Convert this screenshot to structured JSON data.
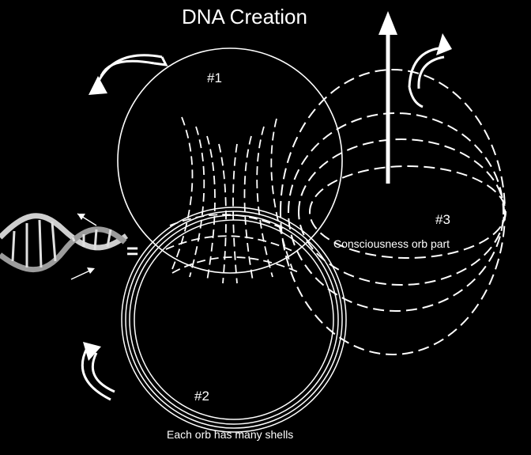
{
  "title": "DNA Creation",
  "labels": {
    "orb1": "#1",
    "orb2": "#2",
    "orb3": "#3",
    "consciousness": "Consciousness orb part",
    "shells": "Each orb has many shells",
    "equals": "="
  },
  "colors": {
    "background": "#000000",
    "stroke": "#ffffff",
    "dna": "#c9c9c9"
  },
  "icons": [
    "rotate-arrow-icon",
    "up-arrow-icon",
    "dna-helix-icon"
  ]
}
